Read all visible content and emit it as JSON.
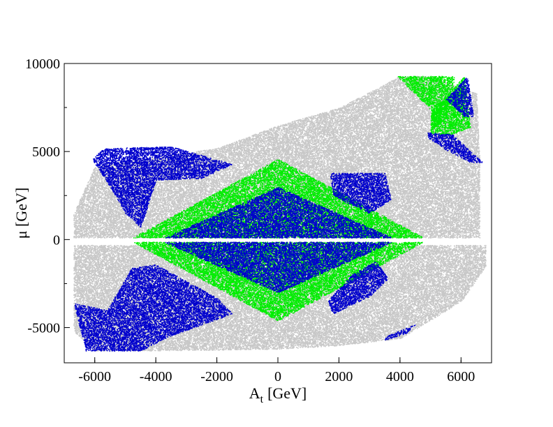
{
  "chart_data": {
    "type": "scatter",
    "title": "",
    "xlabel_main": "A",
    "xlabel_sub": "t",
    "xlabel_unit": "[GeV]",
    "ylabel": "μ [GeV]",
    "xlim": [
      -7000,
      7000
    ],
    "ylim": [
      -7000,
      10000
    ],
    "x_ticks": [
      -6000,
      -4000,
      -2000,
      0,
      2000,
      4000,
      6000
    ],
    "x_tick_labels": [
      "-6000",
      "-4000",
      "-2000",
      "0",
      "2000",
      "4000",
      "6000"
    ],
    "y_ticks": [
      -5000,
      0,
      5000,
      10000
    ],
    "y_tick_labels": [
      "-5000",
      "0",
      "5000",
      "10000"
    ],
    "grid": false,
    "legend": "none",
    "series": [
      {
        "color": "#c8c8c8",
        "regions": [
          {
            "points": [
              [
                -6700,
                1500
              ],
              [
                -6000,
                4200
              ],
              [
                -2000,
                5200
              ],
              [
                0,
                6500
              ],
              [
                2000,
                7500
              ],
              [
                4000,
                9300
              ],
              [
                5000,
                9300
              ],
              [
                6500,
                8300
              ],
              [
                6600,
                4500
              ],
              [
                6600,
                100
              ],
              [
                -6700,
                100
              ]
            ]
          },
          {
            "points": [
              [
                -6700,
                -300
              ],
              [
                -6700,
                -5200
              ],
              [
                -6000,
                -6300
              ],
              [
                -4000,
                -6300
              ],
              [
                0,
                -6200
              ],
              [
                2000,
                -6000
              ],
              [
                4000,
                -5600
              ],
              [
                6000,
                -3500
              ],
              [
                6800,
                -1500
              ],
              [
                6800,
                -300
              ]
            ]
          }
        ]
      },
      {
        "color": "#00ee00",
        "regions": [
          {
            "diamond": {
              "cx": 0,
              "cy": 0,
              "hw": 4900,
              "hh": 4600
            }
          },
          {
            "points": [
              [
                3900,
                9300
              ],
              [
                5800,
                9300
              ],
              [
                5500,
                6900
              ],
              [
                5100,
                6300
              ],
              [
                5000,
                7400
              ]
            ]
          },
          {
            "points": [
              [
                5000,
                7200
              ],
              [
                6100,
                9300
              ],
              [
                6300,
                6400
              ],
              [
                5700,
                6000
              ],
              [
                5000,
                6000
              ]
            ]
          }
        ]
      },
      {
        "color": "#0000cd",
        "regions": [
          {
            "diamond": {
              "cx": 0,
              "cy": 0,
              "hw": 3900,
              "hh": 3000
            }
          },
          {
            "points": [
              [
                -6100,
                4600
              ],
              [
                -5700,
                5200
              ],
              [
                -3500,
                5300
              ],
              [
                -1500,
                4300
              ],
              [
                -2500,
                3500
              ],
              [
                -4000,
                3400
              ],
              [
                -4500,
                700
              ],
              [
                -5000,
                1500
              ],
              [
                -5500,
                3000
              ]
            ]
          },
          {
            "points": [
              [
                -6700,
                -3600
              ],
              [
                -6300,
                -6300
              ],
              [
                -4500,
                -6300
              ],
              [
                -3600,
                -5500
              ],
              [
                -1500,
                -4200
              ],
              [
                -2000,
                -3300
              ],
              [
                -4000,
                -1400
              ],
              [
                -4800,
                -1600
              ],
              [
                -5600,
                -4000
              ]
            ]
          },
          {
            "points": [
              [
                1700,
                3800
              ],
              [
                3500,
                3800
              ],
              [
                3700,
                2300
              ],
              [
                3000,
                1500
              ],
              [
                2400,
                2000
              ],
              [
                1800,
                2500
              ]
            ]
          },
          {
            "points": [
              [
                1600,
                -3500
              ],
              [
                2400,
                -2000
              ],
              [
                3200,
                -1200
              ],
              [
                3600,
                -2200
              ],
              [
                3000,
                -3200
              ],
              [
                1800,
                -4200
              ]
            ]
          },
          {
            "points": [
              [
                4900,
                6100
              ],
              [
                5700,
                6000
              ],
              [
                6700,
                4400
              ],
              [
                6300,
                4400
              ],
              [
                5600,
                5000
              ],
              [
                4900,
                5800
              ]
            ]
          },
          {
            "points": [
              [
                5500,
                8000
              ],
              [
                6200,
                9300
              ],
              [
                6400,
                7000
              ],
              [
                6100,
                7000
              ]
            ]
          },
          {
            "points": [
              [
                3500,
                -5500
              ],
              [
                4500,
                -4800
              ],
              [
                4200,
                -5300
              ],
              [
                3500,
                -5700
              ]
            ]
          }
        ]
      }
    ]
  }
}
